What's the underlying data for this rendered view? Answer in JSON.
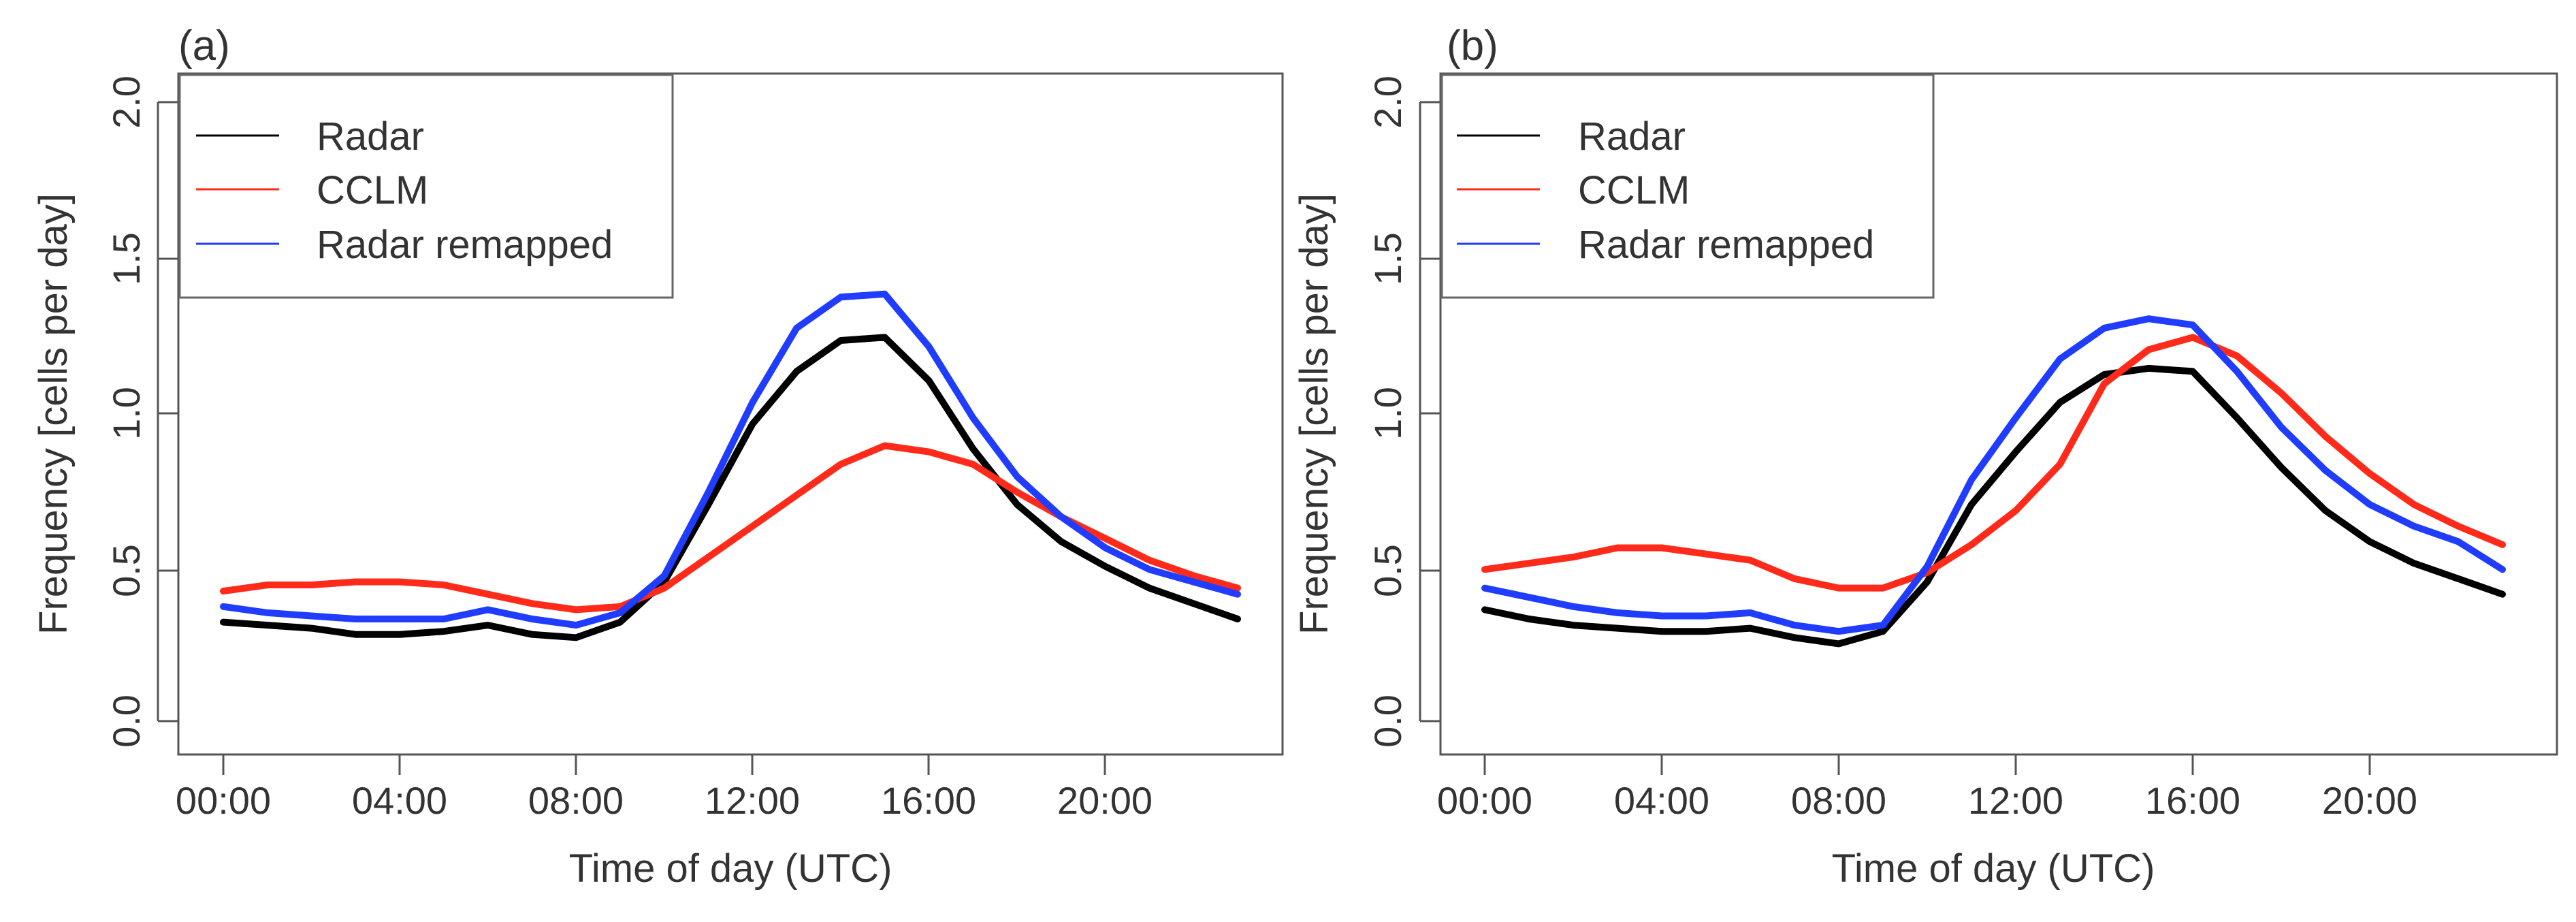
{
  "colors": {
    "Radar": "#000000",
    "CCLM": "#ff2a1a",
    "Radar remapped": "#1f3cff",
    "axis": "#555555"
  },
  "chart_data": [
    {
      "type": "line",
      "panel_label": "(a)",
      "xlabel": "Time of day (UTC)",
      "ylabel": "Frequency [cells per day]",
      "xlim": [
        0,
        23
      ],
      "ylim": [
        0.0,
        2.0
      ],
      "xticks": [
        0,
        4,
        8,
        12,
        16,
        20
      ],
      "xtick_labels": [
        "00:00",
        "04:00",
        "08:00",
        "12:00",
        "16:00",
        "20:00"
      ],
      "yticks": [
        0.0,
        0.5,
        1.0,
        1.5,
        2.0
      ],
      "ytick_labels": [
        "0.0",
        "0.5",
        "1.0",
        "1.5",
        "2.0"
      ],
      "legend_position": "top-left",
      "series": [
        {
          "name": "Radar",
          "x": [
            0,
            1,
            2,
            3,
            4,
            5,
            6,
            7,
            8,
            9,
            10,
            11,
            12,
            13,
            14,
            15,
            16,
            17,
            18,
            19,
            20,
            21,
            22,
            23
          ],
          "y": [
            0.32,
            0.31,
            0.3,
            0.28,
            0.28,
            0.29,
            0.31,
            0.28,
            0.27,
            0.32,
            0.45,
            0.7,
            0.96,
            1.13,
            1.23,
            1.24,
            1.1,
            0.88,
            0.7,
            0.58,
            0.5,
            0.43,
            0.38,
            0.33
          ]
        },
        {
          "name": "CCLM",
          "x": [
            0,
            1,
            2,
            3,
            4,
            5,
            6,
            7,
            8,
            9,
            10,
            11,
            12,
            13,
            14,
            15,
            16,
            17,
            18,
            19,
            20,
            21,
            22,
            23
          ],
          "y": [
            0.42,
            0.44,
            0.44,
            0.45,
            0.45,
            0.44,
            0.41,
            0.38,
            0.36,
            0.37,
            0.43,
            0.53,
            0.63,
            0.73,
            0.83,
            0.89,
            0.87,
            0.83,
            0.74,
            0.66,
            0.59,
            0.52,
            0.47,
            0.43
          ]
        },
        {
          "name": "Radar remapped",
          "x": [
            0,
            1,
            2,
            3,
            4,
            5,
            6,
            7,
            8,
            9,
            10,
            11,
            12,
            13,
            14,
            15,
            16,
            17,
            18,
            19,
            20,
            21,
            22,
            23
          ],
          "y": [
            0.37,
            0.35,
            0.34,
            0.33,
            0.33,
            0.33,
            0.36,
            0.33,
            0.31,
            0.35,
            0.47,
            0.74,
            1.03,
            1.27,
            1.37,
            1.38,
            1.21,
            0.98,
            0.79,
            0.66,
            0.56,
            0.49,
            0.45,
            0.41
          ]
        }
      ]
    },
    {
      "type": "line",
      "panel_label": "(b)",
      "xlabel": "Time of day (UTC)",
      "ylabel": "Frequency [cells per day]",
      "xlim": [
        0,
        23
      ],
      "ylim": [
        0.0,
        2.0
      ],
      "xticks": [
        0,
        4,
        8,
        12,
        16,
        20
      ],
      "xtick_labels": [
        "00:00",
        "04:00",
        "08:00",
        "12:00",
        "16:00",
        "20:00"
      ],
      "yticks": [
        0.0,
        0.5,
        1.0,
        1.5,
        2.0
      ],
      "ytick_labels": [
        "0.0",
        "0.5",
        "1.0",
        "1.5",
        "2.0"
      ],
      "legend_position": "top-left",
      "series": [
        {
          "name": "Radar",
          "x": [
            0,
            1,
            2,
            3,
            4,
            5,
            6,
            7,
            8,
            9,
            10,
            11,
            12,
            13,
            14,
            15,
            16,
            17,
            18,
            19,
            20,
            21,
            22,
            23
          ],
          "y": [
            0.36,
            0.33,
            0.31,
            0.3,
            0.29,
            0.29,
            0.3,
            0.27,
            0.25,
            0.29,
            0.45,
            0.7,
            0.87,
            1.03,
            1.12,
            1.14,
            1.13,
            0.98,
            0.82,
            0.68,
            0.58,
            0.51,
            0.46,
            0.41
          ]
        },
        {
          "name": "CCLM",
          "x": [
            0,
            1,
            2,
            3,
            4,
            5,
            6,
            7,
            8,
            9,
            10,
            11,
            12,
            13,
            14,
            15,
            16,
            17,
            18,
            19,
            20,
            21,
            22,
            23
          ],
          "y": [
            0.49,
            0.51,
            0.53,
            0.56,
            0.56,
            0.54,
            0.52,
            0.46,
            0.43,
            0.43,
            0.48,
            0.57,
            0.68,
            0.83,
            1.09,
            1.2,
            1.24,
            1.18,
            1.06,
            0.92,
            0.8,
            0.7,
            0.63,
            0.57
          ]
        },
        {
          "name": "Radar remapped",
          "x": [
            0,
            1,
            2,
            3,
            4,
            5,
            6,
            7,
            8,
            9,
            10,
            11,
            12,
            13,
            14,
            15,
            16,
            17,
            18,
            19,
            20,
            21,
            22,
            23
          ],
          "y": [
            0.43,
            0.4,
            0.37,
            0.35,
            0.34,
            0.34,
            0.35,
            0.31,
            0.29,
            0.31,
            0.5,
            0.78,
            0.98,
            1.17,
            1.27,
            1.3,
            1.28,
            1.13,
            0.95,
            0.81,
            0.7,
            0.63,
            0.58,
            0.49
          ]
        }
      ]
    }
  ]
}
